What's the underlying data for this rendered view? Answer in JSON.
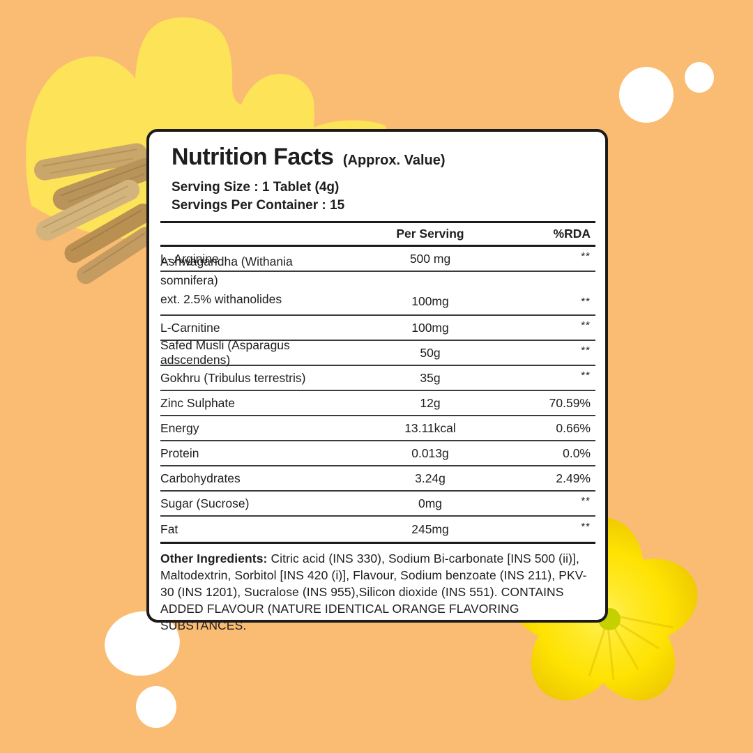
{
  "background_color": "#FABB73",
  "decor": {
    "blob_color": "#FCE357",
    "flower_color": "#FFE606",
    "flower_center_color": "#C4D000",
    "circle_color": "#FFFFFF",
    "root_colors": [
      "#C9A76B",
      "#B9945A",
      "#D3B47C",
      "#B98F52",
      "#C49B60"
    ]
  },
  "card": {
    "title": "Nutrition Facts",
    "title_suffix": "(Approx. Value)",
    "serving_size": "Serving Size : 1 Tablet (4g)",
    "servings_per_container": "Servings Per Container : 15",
    "columns": {
      "per_serving": "Per Serving",
      "rda": "%RDA"
    },
    "rows": [
      {
        "label": "L- Arginine",
        "value": "500 mg",
        "rda": "**"
      },
      {
        "label": "Ashwagandha (Withania somnifera)\next. 2.5% withanolides",
        "value": "100mg",
        "rda": "**"
      },
      {
        "label": "L-Carnitine",
        "value": "100mg",
        "rda": "**"
      },
      {
        "label": "Safed Musli (Asparagus adscendens)",
        "value": "50g",
        "rda": "**"
      },
      {
        "label": "Gokhru (Tribulus terrestris)",
        "value": "35g",
        "rda": "**"
      },
      {
        "label": "Zinc Sulphate",
        "value": "12g",
        "rda": "70.59%"
      },
      {
        "label": "Energy",
        "value": "13.11kcal",
        "rda": "0.66%"
      },
      {
        "label": "Protein",
        "value": "0.013g",
        "rda": "0.0%"
      },
      {
        "label": "Carbohydrates",
        "value": "3.24g",
        "rda": "2.49%"
      },
      {
        "label": "Sugar (Sucrose)",
        "value": "0mg",
        "rda": "**"
      },
      {
        "label": "Fat",
        "value": "245mg",
        "rda": "**"
      }
    ],
    "other_ingredients_label": "Other Ingredients:",
    "other_ingredients_text": " Citric acid (INS 330), Sodium Bi-carbonate [INS 500 (ii)], Maltodextrin, Sorbitol [INS 420 (i)], Flavour, Sodium benzoate (INS 211), PKV-30 (INS 1201), Sucralose (INS 955),Silicon dioxide (INS 551). CONTAINS ADDED FLAVOUR (NATURE IDENTICAL ORANGE FLAVORING SUBSTANCES."
  }
}
